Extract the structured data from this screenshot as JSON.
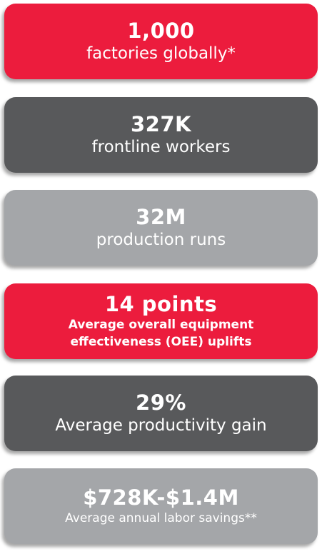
{
  "cards": [
    {
      "value": "1,000",
      "label": "factories globally*"
    },
    {
      "value": "327K",
      "label": "frontline workers"
    },
    {
      "value": "32M",
      "label": "production runs"
    },
    {
      "value": "14 points",
      "label": "Average overall equipment effectiveness (OEE) uplifts"
    },
    {
      "value": "29%",
      "label": "Average productivity gain"
    },
    {
      "value": "$728K-$1.4M",
      "label": "Average annual labor savings**"
    }
  ]
}
